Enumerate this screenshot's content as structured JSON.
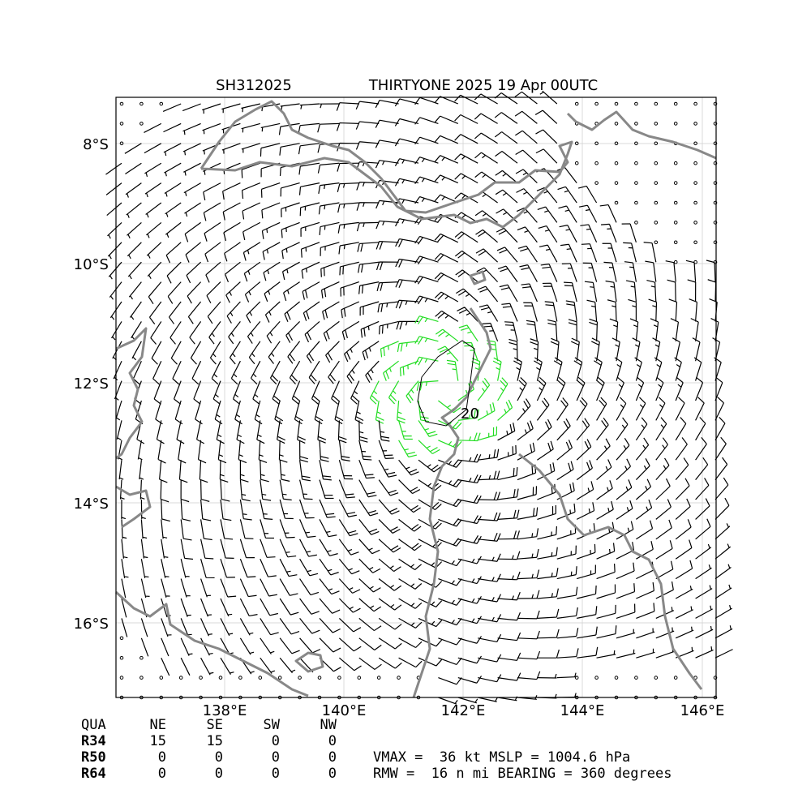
{
  "header": {
    "storm_id": "SH312025",
    "title": "THIRTYONE 2025 19 Apr 00UTC"
  },
  "map": {
    "lon_labels": [
      "138°E",
      "140°E",
      "142°E",
      "144°E",
      "146°E"
    ],
    "lat_labels": [
      "8°S",
      "10°S",
      "12°S",
      "14°S",
      "16°S"
    ],
    "contour_label": "20"
  },
  "table": {
    "header": [
      "QUA",
      "NE",
      "SE",
      "SW",
      "NW"
    ],
    "rows": [
      [
        "R34",
        "15",
        "15",
        "0",
        "0"
      ],
      [
        "R50",
        "0",
        "0",
        "0",
        "0"
      ],
      [
        "R64",
        "0",
        "0",
        "0",
        "0"
      ]
    ]
  },
  "stats": [
    "VMAX =  36 kt MSLP = 1004.6 hPa",
    "RMW =  16 n mi BEARING = 360 degrees"
  ]
}
